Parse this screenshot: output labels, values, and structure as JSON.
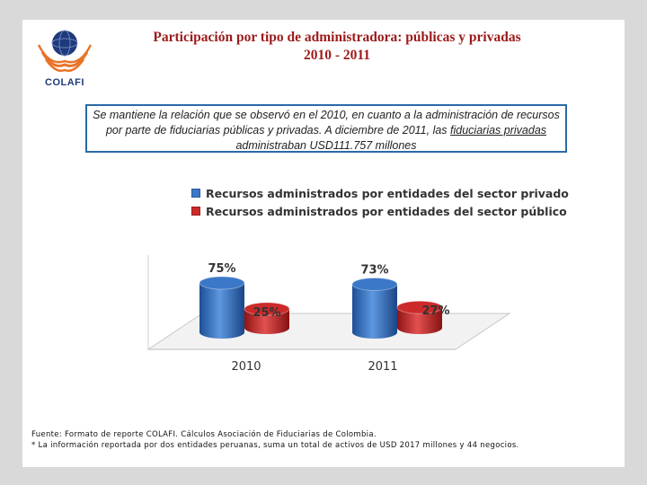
{
  "logo": {
    "text": "COLAFI"
  },
  "title": {
    "line1": "Participación por tipo de administradora: públicas y privadas",
    "line2": "2010 - 2011"
  },
  "callout": {
    "text_before": "Se mantiene la relación que se observó en el 2010, en cuanto a la administración de recursos por parte de fiduciarias públicas y privadas. A diciembre de 2011, las ",
    "text_underlined": "fiduciarias privadas ",
    "text_after": "administraban USD111.757 millones"
  },
  "chart_data": {
    "type": "bar",
    "categories": [
      "2010",
      "2011"
    ],
    "series": [
      {
        "name": "Recursos administrados por entidades del sector privado",
        "values": [
          75,
          73
        ],
        "labels": [
          "75%",
          "73%"
        ],
        "color": "#3b78c8"
      },
      {
        "name": "Recursos administrados por entidades del sector público",
        "values": [
          25,
          27
        ],
        "labels": [
          "25%",
          "27%"
        ],
        "color": "#cc2a2a"
      }
    ],
    "ylim": [
      0,
      100
    ],
    "unit": "%",
    "legend_position": "top"
  },
  "footnote": {
    "line1": "Fuente: Formato de reporte COLAFI. Cálculos Asociación de Fiduciarias de Colombia.",
    "line2": "* La información reportada por dos entidades peruanas, suma un total de activos de USD 2017 millones y 44 negocios."
  }
}
